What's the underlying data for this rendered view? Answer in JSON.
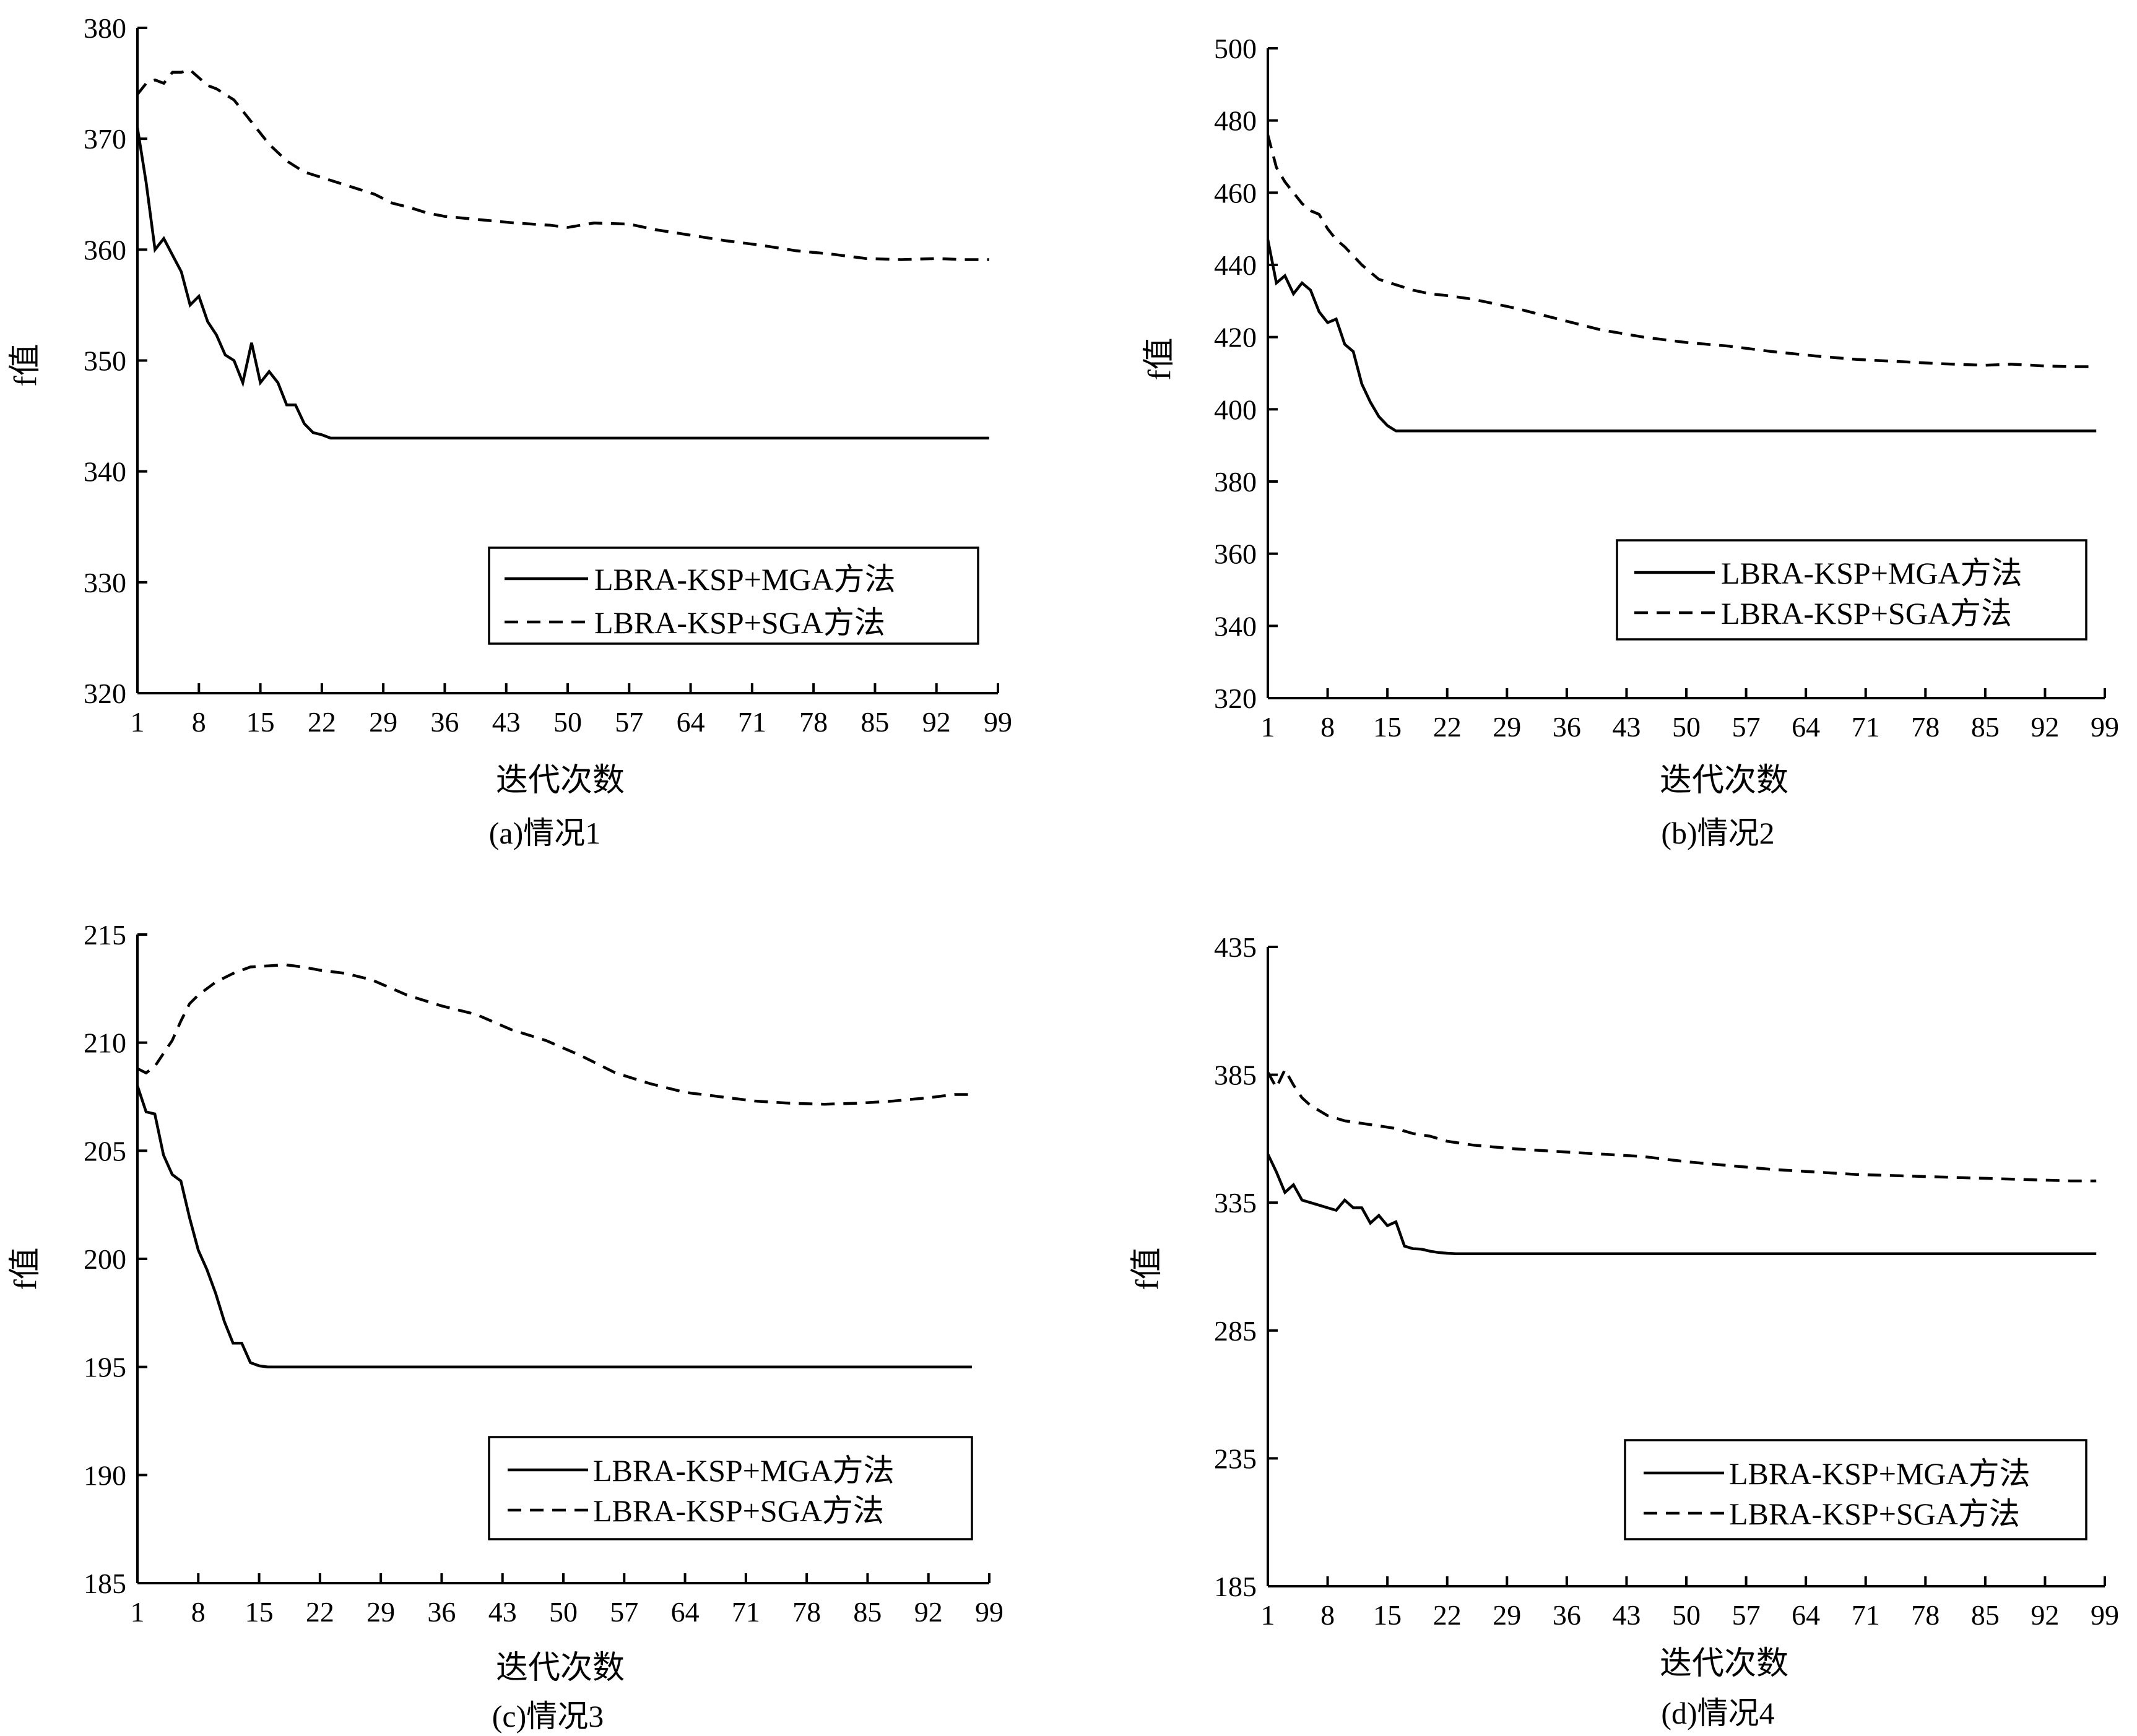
{
  "chart_data": [
    {
      "type": "line",
      "caption": "(a)情况1",
      "xlabel": "迭代次数",
      "ylabel": "f值",
      "xlim": [
        1,
        99
      ],
      "ylim": [
        320,
        380
      ],
      "xticks": [
        1,
        8,
        15,
        22,
        29,
        36,
        43,
        50,
        57,
        64,
        71,
        78,
        85,
        92,
        99
      ],
      "yticks": [
        320,
        330,
        340,
        350,
        360,
        370,
        380
      ],
      "legend": "bottom-right",
      "series": [
        {
          "name": "LBRA-KSP+MGA方法",
          "style": "solid",
          "x": [
            1,
            2,
            3,
            4,
            5,
            6,
            7,
            8,
            9,
            10,
            11,
            12,
            13,
            14,
            15,
            16,
            17,
            18,
            19,
            20,
            21,
            22,
            23,
            30,
            40,
            50,
            60,
            70,
            80,
            90,
            98
          ],
          "y": [
            371,
            366,
            360,
            361,
            359.5,
            358,
            355,
            355.8,
            353.5,
            352.3,
            350.5,
            350,
            348,
            351.6,
            348,
            349,
            348,
            346,
            346,
            344.3,
            343.5,
            343.3,
            343,
            343,
            343,
            343,
            343,
            343,
            343,
            343,
            343
          ]
        },
        {
          "name": "LBRA-KSP+SGA方法",
          "style": "dashed",
          "x": [
            1,
            2,
            3,
            4,
            5,
            6,
            7,
            8,
            9,
            10,
            12,
            14,
            16,
            18,
            20,
            22,
            24,
            26,
            28,
            30,
            32,
            34,
            36,
            40,
            44,
            48,
            50,
            53,
            57,
            60,
            64,
            68,
            72,
            76,
            80,
            84,
            88,
            92,
            95,
            98
          ],
          "y": [
            374,
            375,
            375.3,
            375,
            376,
            376,
            376.2,
            375.5,
            374.8,
            374.5,
            373.5,
            371.5,
            369.5,
            368,
            367,
            366.5,
            366,
            365.5,
            365,
            364.2,
            363.8,
            363.3,
            363,
            362.7,
            362.4,
            362.2,
            362,
            362.4,
            362.3,
            361.8,
            361.3,
            360.8,
            360.4,
            359.9,
            359.6,
            359.2,
            359.1,
            359.2,
            359.1,
            359.1
          ]
        }
      ]
    },
    {
      "type": "line",
      "caption": "(b)情况2",
      "xlabel": "迭代次数",
      "ylabel": "f值",
      "xlim": [
        1,
        99
      ],
      "ylim": [
        320,
        500
      ],
      "xticks": [
        1,
        8,
        15,
        22,
        29,
        36,
        43,
        50,
        57,
        64,
        71,
        78,
        85,
        92,
        99
      ],
      "yticks": [
        320,
        340,
        360,
        380,
        400,
        420,
        440,
        460,
        480,
        500
      ],
      "legend": "bottom-right",
      "series": [
        {
          "name": "LBRA-KSP+MGA方法",
          "style": "solid",
          "x": [
            1,
            2,
            3,
            4,
            5,
            6,
            7,
            8,
            9,
            10,
            11,
            12,
            13,
            14,
            15,
            16,
            17,
            18,
            25,
            40,
            60,
            80,
            98
          ],
          "y": [
            447,
            435,
            437,
            432,
            435,
            433,
            427,
            424,
            425,
            418,
            416,
            407,
            402,
            398,
            395.5,
            394,
            394,
            394,
            394,
            394,
            394,
            394,
            394
          ]
        },
        {
          "name": "LBRA-KSP+SGA方法",
          "style": "dashed",
          "x": [
            1,
            2,
            3,
            4,
            5,
            6,
            7,
            8,
            9,
            10,
            12,
            14,
            16,
            18,
            20,
            22,
            25,
            30,
            35,
            40,
            45,
            50,
            55,
            60,
            65,
            70,
            75,
            80,
            85,
            88,
            92,
            95,
            98
          ],
          "y": [
            476,
            467,
            463,
            460,
            457,
            455,
            454,
            450,
            447,
            445,
            440,
            436,
            434.5,
            433,
            432,
            431.5,
            430.5,
            428,
            425,
            422,
            420,
            418.5,
            417.5,
            416,
            414.8,
            413.8,
            413.2,
            412.6,
            412.2,
            412.5,
            412,
            411.8,
            411.8
          ]
        }
      ]
    },
    {
      "type": "line",
      "caption": "(c)情况3",
      "xlabel": "迭代次数",
      "ylabel": "f值",
      "xlim": [
        1,
        99
      ],
      "ylim": [
        185,
        215
      ],
      "xticks": [
        1,
        8,
        15,
        22,
        29,
        36,
        43,
        50,
        57,
        64,
        71,
        78,
        85,
        92,
        99
      ],
      "yticks": [
        185,
        190,
        195,
        200,
        205,
        210,
        215
      ],
      "legend": "bottom-right",
      "series": [
        {
          "name": "LBRA-KSP+MGA方法",
          "style": "solid",
          "x": [
            1,
            2,
            3,
            4,
            5,
            6,
            7,
            8,
            9,
            10,
            11,
            12,
            13,
            14,
            15,
            16,
            17,
            25,
            40,
            60,
            80,
            97
          ],
          "y": [
            208,
            206.8,
            206.7,
            204.8,
            203.9,
            203.6,
            201.9,
            200.4,
            199.5,
            198.4,
            197.1,
            196.1,
            196.1,
            195.2,
            195.05,
            195,
            195,
            195,
            195,
            195,
            195,
            195
          ]
        },
        {
          "name": "LBRA-KSP+SGA方法",
          "style": "dashed",
          "x": [
            1,
            2,
            3,
            4,
            5,
            6,
            7,
            8,
            10,
            12,
            14,
            16,
            18,
            20,
            22,
            25,
            28,
            32,
            36,
            40,
            44,
            48,
            52,
            56,
            60,
            64,
            68,
            72,
            76,
            80,
            84,
            88,
            92,
            95,
            97
          ],
          "y": [
            208.8,
            208.6,
            208.9,
            209.5,
            210.1,
            211,
            211.8,
            212.2,
            212.8,
            213.2,
            213.5,
            213.55,
            213.6,
            213.5,
            213.35,
            213.2,
            212.9,
            212.2,
            211.7,
            211.3,
            210.6,
            210.1,
            209.4,
            208.6,
            208.1,
            207.7,
            207.5,
            207.3,
            207.2,
            207.15,
            207.2,
            207.3,
            207.45,
            207.6,
            207.6
          ]
        }
      ]
    },
    {
      "type": "line",
      "caption": "(d)情况4",
      "xlabel": "迭代次数",
      "ylabel": "f值",
      "xlim": [
        1,
        99
      ],
      "ylim": [
        185,
        435
      ],
      "xticks": [
        1,
        8,
        15,
        22,
        29,
        36,
        43,
        50,
        57,
        64,
        71,
        78,
        85,
        92,
        99
      ],
      "yticks": [
        185,
        235,
        285,
        335,
        385,
        435
      ],
      "legend": "bottom-right",
      "series": [
        {
          "name": "LBRA-KSP+MGA方法",
          "style": "solid",
          "x": [
            1,
            2,
            3,
            4,
            5,
            6,
            7,
            8,
            9,
            10,
            11,
            12,
            13,
            14,
            15,
            16,
            17,
            18,
            19,
            20,
            21,
            22,
            23,
            30,
            50,
            70,
            90,
            98
          ],
          "y": [
            354,
            347,
            339,
            342,
            336,
            335,
            334,
            333,
            332,
            336,
            333,
            333,
            327,
            330,
            326,
            327.5,
            318,
            317,
            316.8,
            316,
            315.5,
            315.2,
            315,
            315,
            315,
            315,
            315,
            315
          ]
        },
        {
          "name": "LBRA-KSP+SGA方法",
          "style": "dashed",
          "x": [
            1,
            2,
            3,
            4,
            5,
            6,
            7,
            8,
            10,
            12,
            14,
            16,
            18,
            20,
            22,
            25,
            30,
            35,
            40,
            45,
            50,
            55,
            60,
            65,
            70,
            75,
            80,
            85,
            90,
            95,
            98
          ],
          "y": [
            386,
            380,
            387,
            381,
            376,
            373,
            371,
            369,
            367,
            366,
            365,
            364,
            362,
            361,
            359,
            357.5,
            356,
            355,
            354,
            353,
            351,
            349.5,
            348,
            347,
            346,
            345.5,
            345,
            344.5,
            344,
            343.5,
            343.5
          ]
        }
      ]
    }
  ]
}
